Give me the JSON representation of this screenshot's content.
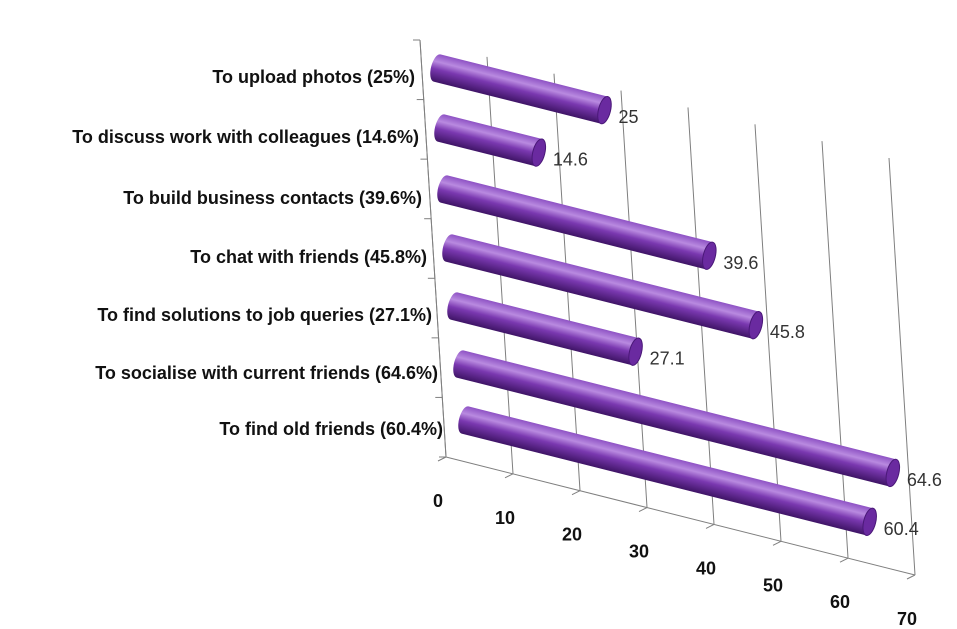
{
  "chart_data": {
    "type": "bar",
    "orientation": "horizontal",
    "style": "3d-cylinder",
    "title": "",
    "xlabel": "",
    "ylabel": "",
    "categories": [
      "To upload photos (25%)",
      "To discuss work with colleagues (14.6%)",
      "To build business contacts (39.6%)",
      "To chat with friends (45.8%)",
      "To find solutions to job queries (27.1%)",
      "To socialise with current friends (64.6%)",
      "To find old friends (60.4%)"
    ],
    "values": [
      25,
      14.6,
      39.6,
      45.8,
      27.1,
      64.6,
      60.4
    ],
    "value_labels": [
      "25",
      "14.6",
      "39.6",
      "45.8",
      "27.1",
      "64.6",
      "60.4"
    ],
    "xlim": [
      0,
      70
    ],
    "x_ticks": [
      "0",
      "10",
      "20",
      "30",
      "40",
      "50",
      "60",
      "70"
    ],
    "grid": true,
    "legend": "none",
    "colors": {
      "bar": "#7030a0",
      "bar_highlight": "#b98ae0",
      "bar_shadow": "#3f1466",
      "grid": "#7f7f7f",
      "text": "#111111"
    }
  }
}
